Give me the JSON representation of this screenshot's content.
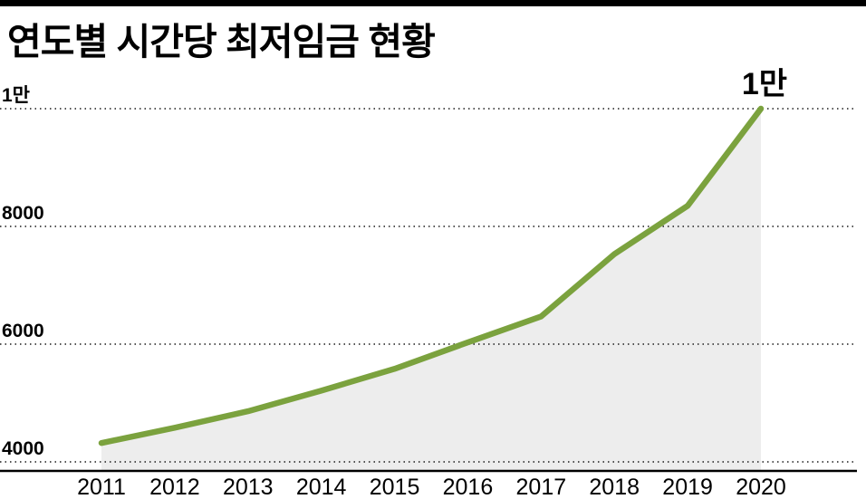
{
  "title": "연도별 시간당 최저임금 현황",
  "chart_data": {
    "type": "area",
    "x": [
      2011,
      2012,
      2013,
      2014,
      2015,
      2016,
      2017,
      2018,
      2019,
      2020
    ],
    "x_tick_labels": [
      "2011",
      "2012",
      "2013",
      "2014",
      "2015",
      "2016",
      "2017",
      "2018",
      "2019",
      "2020"
    ],
    "values": [
      4320,
      4580,
      4860,
      5210,
      5580,
      6030,
      6470,
      7530,
      8350,
      10000
    ],
    "title": "연도별 시간당 최저임금 현황",
    "xlabel": "",
    "ylabel": "",
    "ylim": [
      4000,
      10000
    ],
    "yticks": [
      {
        "value": 4000,
        "label": "4000"
      },
      {
        "value": 6000,
        "label": "6000"
      },
      {
        "value": 8000,
        "label": "8000"
      },
      {
        "value": 10000,
        "label": "1만"
      }
    ],
    "grid": "horizontal-dotted",
    "legend": "none",
    "line_color": "#7ba23e",
    "area_fill_color": "#ededed",
    "axis_color": "#000000",
    "tick_label_color": "#000000",
    "annotation": {
      "text": "1만",
      "x": 2020,
      "value": 10000
    }
  }
}
